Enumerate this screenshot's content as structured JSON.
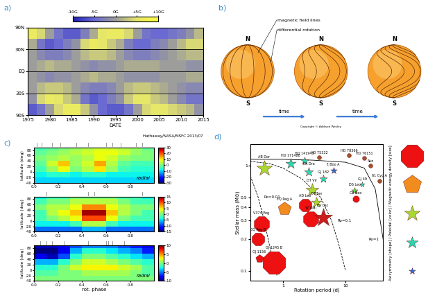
{
  "chart_data": [
    {
      "type": "heatmap",
      "label": "a)",
      "xlabel": "DATE",
      "note": "Hathaway/NASA/MSFC 2013/07",
      "x_bins": [
        1975,
        1977,
        1979,
        1981,
        1983,
        1985,
        1987,
        1989,
        1991,
        1993,
        1995,
        1997,
        1999,
        2001,
        2003,
        2005,
        2007,
        2009,
        2011,
        2013,
        2015
      ],
      "y_bins": [
        -1,
        -0.75,
        -0.5,
        -0.25,
        0,
        0.25,
        0.5,
        0.75,
        1
      ],
      "cells": [
        [
          -6,
          -4,
          0,
          4,
          6,
          6,
          3,
          -1,
          -5,
          -6,
          -6,
          -4,
          0,
          4,
          5,
          5,
          4,
          3,
          2,
          -1
        ],
        [
          -1,
          4,
          6,
          5,
          3,
          1,
          -4,
          -6,
          -5,
          -3,
          -1,
          3,
          5,
          5,
          3,
          2,
          0,
          -2,
          -4,
          -4
        ],
        [
          0,
          2,
          3,
          3,
          2,
          0,
          -2,
          -3,
          -3,
          -2,
          0,
          2,
          3,
          3,
          2,
          1,
          0,
          -1,
          -2,
          -2
        ],
        [
          0,
          -1,
          -2,
          -1,
          -1,
          0,
          1,
          2,
          1,
          1,
          0,
          -1,
          -1,
          -1,
          -1,
          0,
          0,
          0,
          1,
          1
        ],
        [
          0,
          1,
          2,
          1,
          1,
          0,
          -1,
          -2,
          -1,
          -1,
          0,
          1,
          1,
          1,
          1,
          0,
          0,
          0,
          -1,
          -1
        ],
        [
          0,
          -2,
          -3,
          -3,
          -2,
          0,
          2,
          3,
          3,
          2,
          0,
          -2,
          -3,
          -3,
          -2,
          -1,
          0,
          1,
          2,
          2
        ],
        [
          1,
          -4,
          -6,
          -5,
          -3,
          -1,
          4,
          6,
          5,
          3,
          1,
          -3,
          -5,
          -5,
          -3,
          -2,
          0,
          2,
          4,
          4
        ],
        [
          6,
          4,
          0,
          -4,
          -6,
          -6,
          -3,
          1,
          5,
          6,
          6,
          4,
          0,
          -4,
          -5,
          -5,
          -4,
          -3,
          -1,
          2
        ]
      ],
      "xlim": [
        1975,
        2015
      ],
      "xticks": [
        1975,
        1980,
        1985,
        1990,
        1995,
        2000,
        2005,
        2010,
        2015
      ],
      "ylim": [
        -1,
        1
      ],
      "yticks": [
        {
          "value": -1,
          "label": "90S"
        },
        {
          "value": -0.5,
          "label": "30S"
        },
        {
          "value": 0,
          "label": "EQ"
        },
        {
          "value": 0.5,
          "label": "30N"
        },
        {
          "value": 1,
          "label": "90N"
        }
      ],
      "grid": true,
      "colorbar": {
        "range": [
          -10,
          10
        ],
        "ticks": [
          {
            "value": -10,
            "label": "-10G"
          },
          {
            "value": -5,
            "label": "-5G"
          },
          {
            "value": 0,
            "label": "0G"
          },
          {
            "value": 5,
            "label": "+5G"
          },
          {
            "value": 10,
            "label": "+10G"
          }
        ]
      }
    },
    {
      "type": "heatmap",
      "label": "c)",
      "annotation": "radial",
      "ylabel": "latitude (deg)",
      "x_bins": [
        0,
        0.1,
        0.2,
        0.3,
        0.4,
        0.5,
        0.6,
        0.7,
        0.8,
        0.9,
        1
      ],
      "y_bins": [
        -40,
        -20,
        0,
        20,
        40,
        60,
        80,
        90
      ],
      "cells": [
        [
          -10,
          -10,
          -10,
          -10,
          -10,
          -10,
          -10,
          -10,
          -10,
          -10
        ],
        [
          -8,
          -6,
          -6,
          -8,
          -6,
          -6,
          -8,
          -8,
          -8,
          -8
        ],
        [
          -4,
          2,
          8,
          0,
          4,
          10,
          2,
          -4,
          -6,
          -6
        ],
        [
          -2,
          6,
          12,
          2,
          6,
          14,
          4,
          -2,
          -4,
          -4
        ],
        [
          0,
          2,
          4,
          2,
          4,
          8,
          6,
          2,
          0,
          0
        ],
        [
          -2,
          0,
          2,
          4,
          6,
          8,
          8,
          6,
          2,
          0
        ],
        [
          -4,
          -2,
          0,
          2,
          4,
          6,
          6,
          4,
          2,
          -2
        ]
      ],
      "phases": [
        0.02,
        0.06,
        0.15,
        0.22,
        0.35,
        0.45,
        0.6,
        0.65,
        0.72,
        0.85,
        0.9
      ],
      "xlim": [
        0,
        1
      ],
      "xticks": [
        0.0,
        0.2,
        0.4,
        0.6,
        0.8
      ],
      "ylim": [
        -40,
        90
      ],
      "yticks": [
        -40,
        -20,
        0,
        20,
        40,
        60,
        80
      ],
      "colorbar": {
        "range": [
          -30,
          30
        ],
        "ticks": [
          -30,
          -20,
          -10,
          0,
          10,
          20,
          30
        ]
      }
    },
    {
      "type": "heatmap",
      "ylabel": "latitude (deg)",
      "x_bins": [
        0,
        0.1,
        0.2,
        0.3,
        0.4,
        0.5,
        0.6,
        0.7,
        0.8,
        0.9,
        1
      ],
      "y_bins": [
        -40,
        -20,
        0,
        20,
        40,
        60,
        80,
        90
      ],
      "cells": [
        [
          -8,
          -8,
          -8,
          -8,
          -6,
          -6,
          -8,
          -8,
          -8,
          -8
        ],
        [
          -4,
          -4,
          -4,
          -2,
          2,
          2,
          -2,
          -4,
          -4,
          -4
        ],
        [
          -2,
          0,
          2,
          4,
          10,
          10,
          4,
          0,
          -2,
          -2
        ],
        [
          -2,
          2,
          4,
          6,
          14,
          14,
          6,
          2,
          0,
          -2
        ],
        [
          0,
          2,
          2,
          4,
          8,
          8,
          4,
          2,
          0,
          0
        ],
        [
          -2,
          0,
          0,
          2,
          2,
          2,
          2,
          0,
          -2,
          -2
        ],
        [
          -4,
          -2,
          -2,
          0,
          0,
          0,
          0,
          -2,
          -2,
          -4
        ]
      ],
      "phases": [
        0.1,
        0.45,
        0.5,
        0.9
      ],
      "xlim": [
        0,
        1
      ],
      "xticks": [
        0.0,
        0.2,
        0.4,
        0.6,
        0.8
      ],
      "ylim": [
        -40,
        90
      ],
      "yticks": [
        -40,
        -20,
        0,
        20,
        40,
        60,
        80
      ],
      "colorbar": {
        "range": [
          -15,
          15
        ],
        "ticks": [
          -15,
          -10,
          -5,
          0,
          5,
          10,
          15
        ]
      }
    },
    {
      "type": "heatmap",
      "annotation": "radial",
      "ylabel": "latitude (deg)",
      "xlabel": "rot. phase",
      "x_bins": [
        0,
        0.1,
        0.2,
        0.3,
        0.4,
        0.5,
        0.6,
        0.7,
        0.8,
        0.9,
        1
      ],
      "y_bins": [
        -40,
        -20,
        0,
        20,
        40,
        60,
        80,
        90
      ],
      "cells": [
        [
          0,
          0,
          0,
          0,
          0,
          0,
          0,
          0,
          0,
          0
        ],
        [
          -1,
          -1,
          0,
          0,
          1,
          1,
          1,
          1,
          0,
          -1
        ],
        [
          -2,
          -2,
          0,
          2,
          3,
          3,
          3,
          2,
          1,
          -1
        ],
        [
          -4,
          -4,
          -2,
          0,
          2,
          2,
          1,
          0,
          -1,
          -2
        ],
        [
          -8,
          -9,
          -6,
          -2,
          0,
          0,
          -1,
          -2,
          -3,
          -4
        ],
        [
          -10,
          -10,
          -8,
          -4,
          -2,
          -2,
          -3,
          -4,
          -5,
          -7
        ],
        [
          -9,
          -9,
          -8,
          -6,
          -5,
          -5,
          -5,
          -6,
          -7,
          -8
        ]
      ],
      "phases": [
        0.05,
        0.1,
        0.15,
        0.25,
        0.45,
        0.6,
        0.62,
        0.65,
        0.75
      ],
      "xlim": [
        0,
        1
      ],
      "xticks": [
        0.0,
        0.2,
        0.4,
        0.6,
        0.8
      ],
      "ylim": [
        -40,
        90
      ],
      "yticks": [
        -40,
        -20,
        0,
        20,
        40,
        60,
        80
      ],
      "colorbar": {
        "range": [
          -10,
          10
        ],
        "ticks": [
          -10,
          -5,
          0,
          5,
          10
        ]
      }
    },
    {
      "type": "scatter",
      "label": "d)",
      "xlabel": "Rotation period (d)",
      "ylabel": "Stellar mass (M⊙)",
      "log": true,
      "xlim": [
        0.3,
        40
      ],
      "xticks": [
        1,
        10
      ],
      "ylim": [
        0.08,
        1.6
      ],
      "yticks": [
        0.1,
        0.2,
        0.3,
        0.4,
        0.5,
        1
      ],
      "points": [
        {
          "name": "HD 75332",
          "x": 3.8,
          "y": 1.2,
          "marker": "circle",
          "color": "#a0522d",
          "size": 1.5
        },
        {
          "name": "HD 78366",
          "x": 11.5,
          "y": 1.25,
          "marker": "circle",
          "color": "#a0522d",
          "size": 1.5
        },
        {
          "name": "HD 76151",
          "x": 20,
          "y": 1.18,
          "marker": "circle",
          "color": "#a0522d",
          "size": 1.5
        },
        {
          "name": "Sun",
          "x": 25,
          "y": 1.0,
          "marker": "circle",
          "color": "#a0522d",
          "size": 1.5
        },
        {
          "name": "61 Cyg A",
          "x": 35,
          "y": 0.72,
          "marker": "circle",
          "color": "#a0522d",
          "size": 1.5
        },
        {
          "name": "AB Dor",
          "x": 0.5,
          "y": 0.95,
          "marker": "star",
          "color": "#a8d832",
          "size": 6
        },
        {
          "name": "HD 171488",
          "x": 1.33,
          "y": 1.05,
          "marker": "star",
          "color": "#2ad6b0",
          "size": 4
        },
        {
          "name": "HD 141943",
          "x": 2.2,
          "y": 1.12,
          "marker": "star",
          "color": "#2ad6b0",
          "size": 3
        },
        {
          "name": "EK Dra",
          "x": 2.6,
          "y": 0.88,
          "marker": "star",
          "color": "#2ad6b0",
          "size": 3.5
        },
        {
          "name": "ξ Boo A",
          "x": 6.4,
          "y": 0.9,
          "marker": "star",
          "color": "#2a6fd6",
          "size": 2.5
        },
        {
          "name": "GJ 182",
          "x": 4.4,
          "y": 0.75,
          "marker": "star",
          "color": "#2ad6b0",
          "size": 3
        },
        {
          "name": "DT Vir",
          "x": 2.9,
          "y": 0.59,
          "marker": "star",
          "color": "#a8d832",
          "size": 5
        },
        {
          "name": "OT Ser",
          "x": 3.4,
          "y": 0.45,
          "marker": "star",
          "color": "#a8d832",
          "size": 4
        },
        {
          "name": "DS Leo",
          "x": 14,
          "y": 0.58,
          "marker": "star",
          "color": "#66d95a",
          "size": 2.5
        },
        {
          "name": "GJ 49",
          "x": 18.6,
          "y": 0.66,
          "marker": "star",
          "color": "#2ad6b0",
          "size": 2
        },
        {
          "name": "CE Boo",
          "x": 14.7,
          "y": 0.48,
          "marker": "octagon",
          "color": "#ee1111",
          "size": 2.5
        },
        {
          "name": "EQ Peg A",
          "x": 1.06,
          "y": 0.39,
          "marker": "pentagon",
          "color": "#f28c1e",
          "size": 5
        },
        {
          "name": "AD Leo",
          "x": 2.24,
          "y": 0.42,
          "marker": "octagon",
          "color": "#ee1111",
          "size": 5
        },
        {
          "name": "YZ CMi",
          "x": 2.77,
          "y": 0.31,
          "marker": "octagon",
          "color": "#ee1111",
          "size": 6
        },
        {
          "name": "EV Lac",
          "x": 4.37,
          "y": 0.32,
          "marker": "star",
          "color": "#c81e1e",
          "size": 7
        },
        {
          "name": "V374 Peg",
          "x": 0.45,
          "y": 0.28,
          "marker": "octagon",
          "color": "#ee1111",
          "size": 6
        },
        {
          "name": "EQ Peg B",
          "x": 0.4,
          "y": 0.2,
          "marker": "octagon",
          "color": "#ee1111",
          "size": 5
        },
        {
          "name": "GJ 1156",
          "x": 0.42,
          "y": 0.13,
          "marker": "pentagon",
          "color": "#ee1111",
          "size": 3
        },
        {
          "name": "GJ 1245 B",
          "x": 0.71,
          "y": 0.12,
          "marker": "octagon",
          "color": "#ee1111",
          "size": 9
        }
      ],
      "curves": [
        {
          "name": "Ro=1",
          "line_style": "solid",
          "x": [
            0.3,
            1,
            3,
            10,
            20,
            30,
            40
          ],
          "y": [
            1.15,
            1.15,
            1.13,
            1.08,
            0.95,
            0.6,
            0.2
          ]
        },
        {
          "name": "Ro=0.1",
          "line_style": "dashed",
          "x": [
            0.3,
            0.6,
            1,
            2,
            4,
            6,
            8,
            10
          ],
          "y": [
            1.1,
            1.05,
            0.95,
            0.75,
            0.5,
            0.3,
            0.17,
            0.1
          ]
        },
        {
          "name": "Ro=0.01",
          "line_style": "dashed",
          "x": [
            0.3,
            0.4,
            0.5,
            0.6,
            0.7,
            0.8
          ],
          "y": [
            0.8,
            0.5,
            0.3,
            0.18,
            0.12,
            0.09
          ]
        }
      ],
      "key": {
        "title": "Axisymmetry [shape] / Poloidal [color] / Magnetic energy density [size]",
        "symbols": [
          {
            "marker": "octagon",
            "color": "#ee1111",
            "size": 9
          },
          {
            "marker": "pentagon",
            "color": "#f28c1e",
            "size": 7
          },
          {
            "marker": "star",
            "color": "#a8d832",
            "size": 6
          },
          {
            "marker": "star",
            "color": "#2ad6b0",
            "size": 4.5
          },
          {
            "marker": "star",
            "color": "#2a6fd6",
            "size": 2.5
          }
        ]
      }
    }
  ],
  "diagram": {
    "label": "b)",
    "spheres": [
      {
        "north": "N",
        "south": "S"
      },
      {
        "north": "N",
        "south": "S"
      },
      {
        "north": "N",
        "south": "S"
      }
    ],
    "callouts": [
      "magnetic field lines",
      "differential rotation"
    ],
    "arrows": [
      "time",
      "time"
    ],
    "credit": "Copyright © Addison Wesley"
  }
}
